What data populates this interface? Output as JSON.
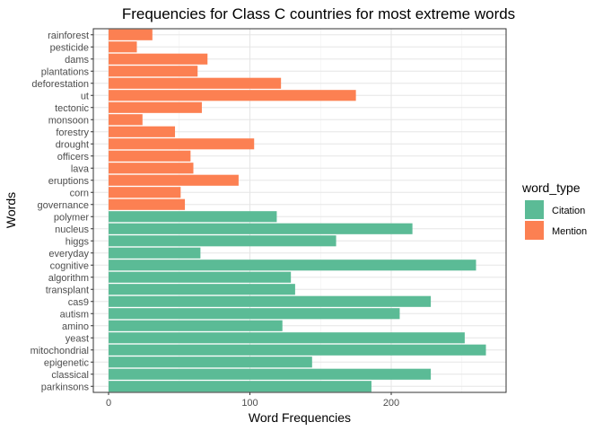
{
  "chart_data": {
    "type": "bar",
    "orientation": "horizontal",
    "title": "Frequencies for Class C countries for most extreme words",
    "xlabel": "Word Frequencies",
    "ylabel": "Words",
    "xlim": [
      0,
      280
    ],
    "xticks": [
      0,
      100,
      200
    ],
    "grid": true,
    "legend": {
      "title": "word_type",
      "position": "right",
      "entries": [
        {
          "name": "Citation",
          "color": "#5BBB96"
        },
        {
          "name": "Mention",
          "color": "#FC8052"
        }
      ]
    },
    "bars": [
      {
        "word": "rainforest",
        "value": 31,
        "type": "Mention"
      },
      {
        "word": "pesticide",
        "value": 20,
        "type": "Mention"
      },
      {
        "word": "dams",
        "value": 70,
        "type": "Mention"
      },
      {
        "word": "plantations",
        "value": 63,
        "type": "Mention"
      },
      {
        "word": "deforestation",
        "value": 122,
        "type": "Mention"
      },
      {
        "word": "ut",
        "value": 175,
        "type": "Mention"
      },
      {
        "word": "tectonic",
        "value": 66,
        "type": "Mention"
      },
      {
        "word": "monsoon",
        "value": 24,
        "type": "Mention"
      },
      {
        "word": "forestry",
        "value": 47,
        "type": "Mention"
      },
      {
        "word": "drought",
        "value": 103,
        "type": "Mention"
      },
      {
        "word": "officers",
        "value": 58,
        "type": "Mention"
      },
      {
        "word": "lava",
        "value": 60,
        "type": "Mention"
      },
      {
        "word": "eruptions",
        "value": 92,
        "type": "Mention"
      },
      {
        "word": "corn",
        "value": 51,
        "type": "Mention"
      },
      {
        "word": "governance",
        "value": 54,
        "type": "Mention"
      },
      {
        "word": "polymer",
        "value": 119,
        "type": "Citation"
      },
      {
        "word": "nucleus",
        "value": 215,
        "type": "Citation"
      },
      {
        "word": "higgs",
        "value": 161,
        "type": "Citation"
      },
      {
        "word": "everyday",
        "value": 65,
        "type": "Citation"
      },
      {
        "word": "cognitive",
        "value": 260,
        "type": "Citation"
      },
      {
        "word": "algorithm",
        "value": 129,
        "type": "Citation"
      },
      {
        "word": "transplant",
        "value": 132,
        "type": "Citation"
      },
      {
        "word": "cas9",
        "value": 228,
        "type": "Citation"
      },
      {
        "word": "autism",
        "value": 206,
        "type": "Citation"
      },
      {
        "word": "amino",
        "value": 123,
        "type": "Citation"
      },
      {
        "word": "yeast",
        "value": 252,
        "type": "Citation"
      },
      {
        "word": "mitochondrial",
        "value": 267,
        "type": "Citation"
      },
      {
        "word": "epigenetic",
        "value": 144,
        "type": "Citation"
      },
      {
        "word": "classical",
        "value": 228,
        "type": "Citation"
      },
      {
        "word": "parkinsons",
        "value": 186,
        "type": "Citation"
      }
    ]
  }
}
